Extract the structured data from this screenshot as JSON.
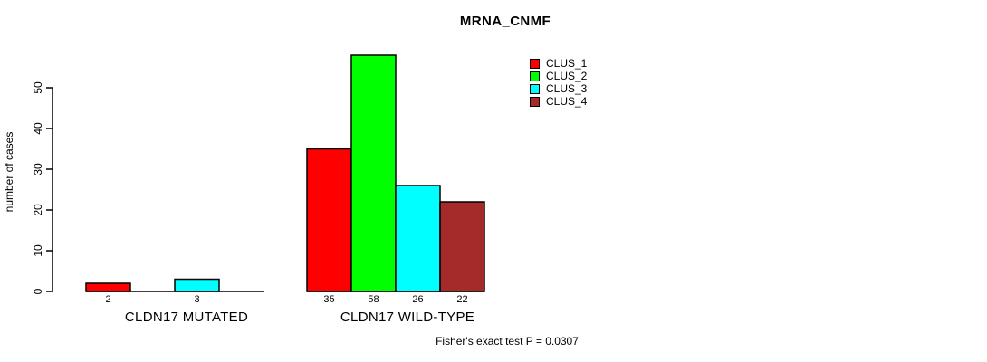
{
  "chart_data": {
    "type": "bar",
    "title": "MRNA_CNMF",
    "ylabel": "number of cases",
    "xlabel": "",
    "footnote": "Fisher's exact test P = 0.0307",
    "categories": [
      "CLDN17 MUTATED",
      "CLDN17 WILD-TYPE"
    ],
    "series": [
      {
        "name": "CLUS_1",
        "color": "#FF0000",
        "values": [
          2,
          35
        ]
      },
      {
        "name": "CLUS_2",
        "color": "#00FF00",
        "values": [
          0,
          58
        ]
      },
      {
        "name": "CLUS_3",
        "color": "#00FFFF",
        "values": [
          3,
          26
        ]
      },
      {
        "name": "CLUS_4",
        "color": "#A52A2A",
        "values": [
          0,
          22
        ]
      }
    ],
    "bar_value_labels": {
      "CLDN17 MUTATED": [
        2,
        null,
        3,
        null
      ],
      "CLDN17 WILD-TYPE": [
        35,
        58,
        26,
        22
      ]
    },
    "ylim": [
      0,
      58
    ],
    "yticks": [
      0,
      10,
      20,
      30,
      40,
      50
    ],
    "grid": false,
    "legend_position": "top-right",
    "legend_entries": [
      "CLUS_1",
      "CLUS_2",
      "CLUS_3",
      "CLUS_4"
    ],
    "zero_bars_hidden": true
  },
  "colors": {
    "axis": "#000000",
    "text": "#000000",
    "background": "#FFFFFF"
  }
}
